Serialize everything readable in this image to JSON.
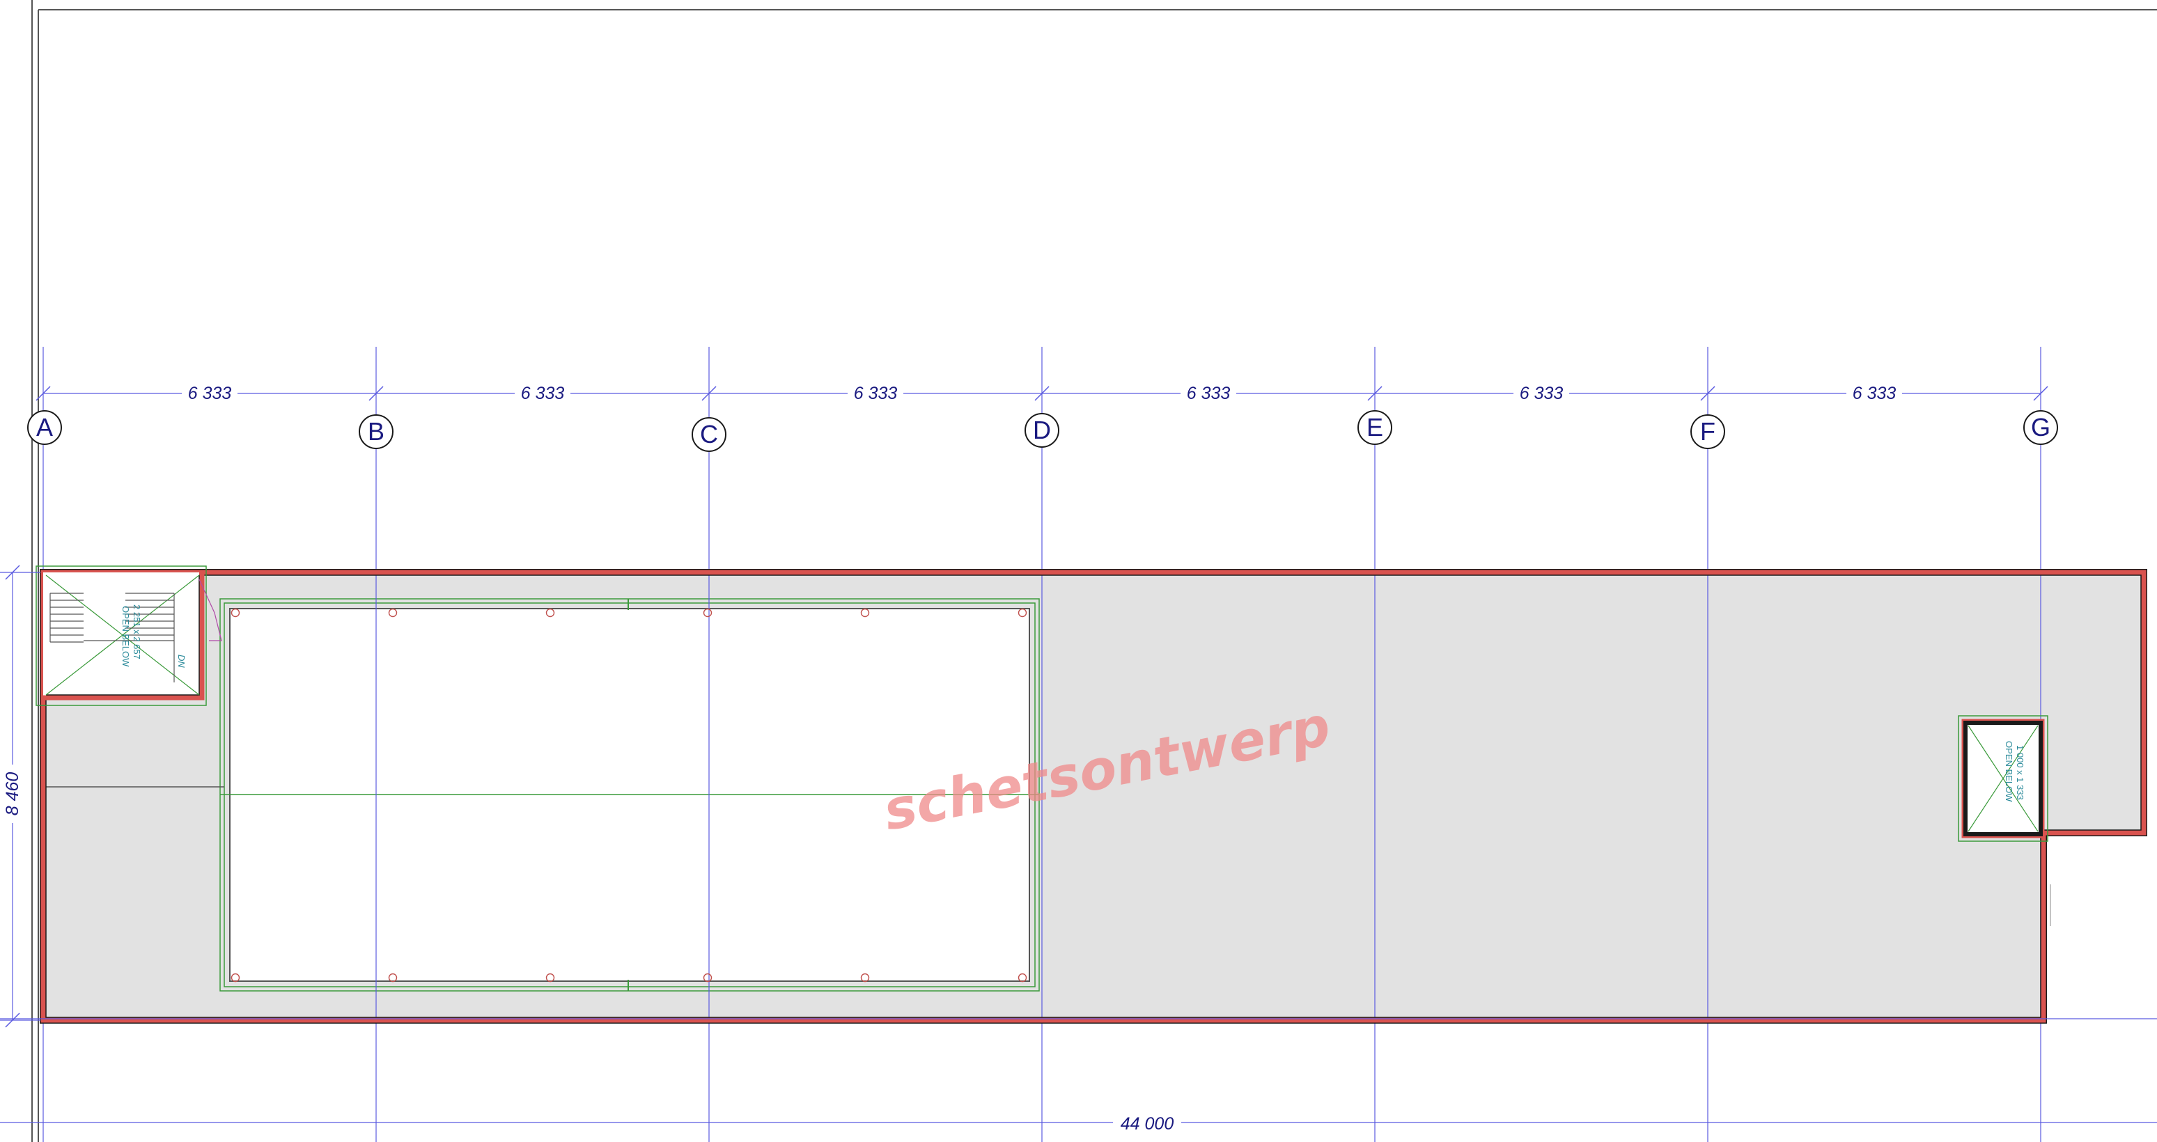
{
  "grid": {
    "labels": [
      "A",
      "B",
      "C",
      "D",
      "E",
      "F",
      "G"
    ],
    "spacing_label": "6 333"
  },
  "dimensions": {
    "bays": [
      "6 333",
      "6 333",
      "6 333",
      "6 333",
      "6 333",
      "6 333"
    ],
    "overall_width": "44 000",
    "overall_depth": "8 460"
  },
  "stair_opening": {
    "label": "OPEN BELOW",
    "size": "2 251 x 2 657",
    "direction": "DN"
  },
  "small_opening": {
    "label": "OPEN BELOW",
    "size": "1 000 x 1 333"
  },
  "watermark": "schetsontwerp",
  "colors": {
    "wall": "#d9534f",
    "floor": "#e2e2e2",
    "grid_line": "#5a5ae0",
    "dimension_text": "#1a1a80",
    "structure_green": "#3a9a3a",
    "note_text": "#2a8a9a"
  }
}
